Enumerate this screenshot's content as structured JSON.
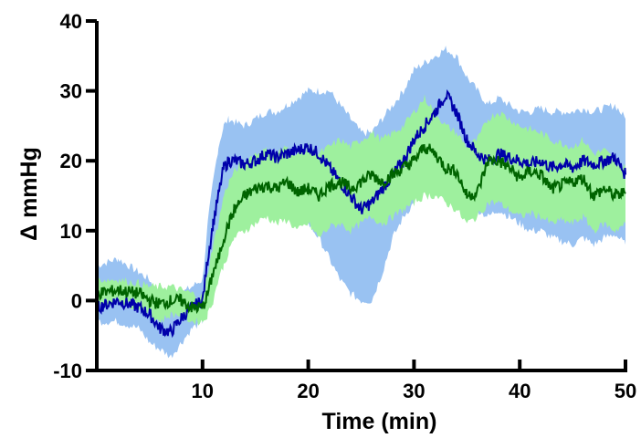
{
  "chart_data": {
    "type": "area",
    "title": "",
    "xlabel": "Time (min)",
    "ylabel": "Δ mmHg",
    "xlim": [
      0,
      50
    ],
    "ylim": [
      -10,
      40
    ],
    "x_ticks": [
      10,
      20,
      30,
      40,
      50
    ],
    "x_tick_labels": [
      "10",
      "20",
      "30",
      "40",
      "50"
    ],
    "y_ticks": [
      -10,
      0,
      10,
      20,
      30,
      40
    ],
    "y_tick_labels": [
      "-10",
      "0",
      "10",
      "20",
      "30",
      "40"
    ],
    "grid": false,
    "legend": "none",
    "series": [
      {
        "color": "#0000aa",
        "band_color": "#99c2f2",
        "x": [
          0,
          2,
          4,
          5,
          6,
          7,
          8,
          9,
          10,
          10.5,
          11,
          11.5,
          12,
          12.5,
          13,
          14,
          15,
          16,
          17,
          18,
          19,
          20,
          21,
          22,
          23,
          24,
          25,
          26,
          27,
          28,
          29,
          30,
          31,
          32,
          33,
          34,
          35,
          36,
          37,
          38,
          39,
          40,
          41,
          42,
          43,
          44,
          45,
          46,
          47,
          48,
          49,
          50
        ],
        "mean": [
          -1,
          0,
          -1,
          -2,
          -4,
          -4.5,
          -2.5,
          -1,
          0,
          6,
          11,
          15,
          19,
          20,
          20,
          19.5,
          20,
          21,
          20.5,
          21,
          21.5,
          22,
          21,
          19,
          17,
          15,
          13,
          14,
          16,
          18,
          20,
          23,
          25,
          27,
          29.5,
          27,
          23,
          21,
          20,
          21,
          20.5,
          20,
          19.5,
          20,
          19,
          19.5,
          19,
          20,
          19.5,
          20,
          20.5,
          18
        ],
        "upper": [
          5,
          6,
          4,
          3,
          0,
          -1,
          1,
          2,
          3,
          11,
          17,
          22,
          25,
          26,
          25.5,
          25,
          26,
          27,
          27,
          28,
          29,
          30,
          30,
          30,
          28,
          26,
          24,
          24,
          26,
          28,
          30,
          33,
          34,
          35,
          36,
          35,
          32,
          30,
          28,
          29,
          28,
          27,
          27,
          27.5,
          27,
          27,
          27,
          27.5,
          27,
          27.5,
          28,
          26
        ],
        "lower": [
          -3,
          -3,
          -4,
          -6,
          -7,
          -8,
          -6,
          -4,
          -3,
          1,
          5,
          8,
          11,
          13,
          13,
          12,
          12,
          13,
          12,
          12,
          12,
          11,
          9,
          6,
          3,
          1,
          0,
          0,
          4,
          9,
          12,
          14,
          16,
          19,
          20,
          18,
          15,
          13,
          12,
          13,
          12,
          11,
          10,
          10,
          9,
          8.5,
          8,
          9,
          8,
          9,
          9.5,
          8
        ]
      },
      {
        "color": "#006400",
        "band_color": "#9ef09e",
        "x": [
          0,
          2,
          4,
          5,
          6,
          7,
          8,
          9,
          10,
          10.5,
          11,
          11.5,
          12,
          12.5,
          13,
          14,
          15,
          16,
          17,
          18,
          19,
          20,
          21,
          22,
          23,
          24,
          25,
          26,
          27,
          28,
          29,
          30,
          31,
          32,
          33,
          34,
          35,
          36,
          37,
          38,
          39,
          40,
          41,
          42,
          43,
          44,
          45,
          46,
          47,
          48,
          49,
          50
        ],
        "mean": [
          1,
          1.5,
          1,
          0,
          -0.5,
          0,
          0,
          -1,
          -1,
          1,
          4,
          6,
          9,
          11,
          13,
          15,
          16,
          16.5,
          16,
          17,
          15.5,
          16,
          15,
          16.5,
          17,
          16,
          17,
          18,
          17,
          18,
          19,
          20,
          22,
          21,
          19,
          18.5,
          15,
          15.5,
          20,
          20,
          19,
          17.5,
          18.5,
          18,
          16,
          16.5,
          17,
          17.5,
          15,
          16,
          15,
          15.5
        ],
        "upper": [
          3,
          3,
          2.5,
          2,
          2,
          2,
          1.5,
          1,
          0.5,
          4,
          8,
          11,
          15,
          17,
          18.5,
          20,
          21,
          21.5,
          21,
          22,
          21,
          22,
          21,
          22,
          23,
          22,
          23,
          24,
          23,
          24,
          25,
          27,
          29,
          27,
          25,
          24,
          22,
          23,
          26,
          27,
          26,
          25,
          24.5,
          24,
          23,
          22.5,
          22,
          23,
          21,
          21.5,
          20,
          19
        ],
        "lower": [
          -1,
          0,
          -1,
          -2,
          -3,
          -2,
          -2,
          -3,
          -3,
          -2,
          0,
          3,
          5,
          7,
          9,
          10,
          11,
          12,
          11,
          11.5,
          10,
          11,
          9,
          10.5,
          11,
          10,
          11,
          12,
          11,
          12,
          13,
          14,
          15,
          15,
          14,
          13,
          11,
          12,
          14,
          14,
          13,
          12,
          12.5,
          12,
          11,
          11.5,
          11,
          12,
          10,
          11,
          10,
          11
        ]
      }
    ]
  }
}
